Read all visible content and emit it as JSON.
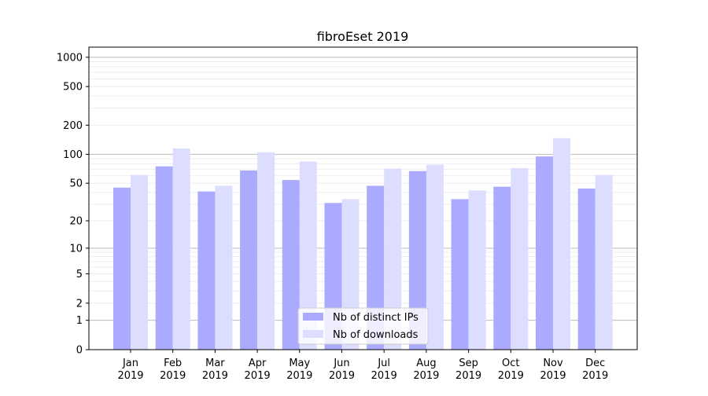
{
  "chart_data": {
    "type": "bar",
    "title": "fibroEset 2019",
    "xlabel": "",
    "ylabel": "",
    "yscale": "log(1+y)",
    "ylim": [
      0,
      1270
    ],
    "grid": true,
    "legend_position": "bottom-center",
    "yticks": [
      0,
      1,
      2,
      5,
      10,
      20,
      50,
      100,
      200,
      500,
      1000
    ],
    "categories": [
      "Jan\n2019",
      "Feb\n2019",
      "Mar\n2019",
      "Apr\n2019",
      "May\n2019",
      "Jun\n2019",
      "Jul\n2019",
      "Aug\n2019",
      "Sep\n2019",
      "Oct\n2019",
      "Nov\n2019",
      "Dec\n2019"
    ],
    "series": [
      {
        "name": "Nb of distinct IPs",
        "color": "#aaaaff",
        "values": [
          45,
          75,
          41,
          68,
          54,
          31,
          47,
          67,
          34,
          46,
          95,
          44
        ]
      },
      {
        "name": "Nb of downloads",
        "color": "#ddddff",
        "values": [
          61,
          115,
          47,
          105,
          84,
          34,
          71,
          78,
          42,
          72,
          147,
          61
        ]
      }
    ]
  }
}
